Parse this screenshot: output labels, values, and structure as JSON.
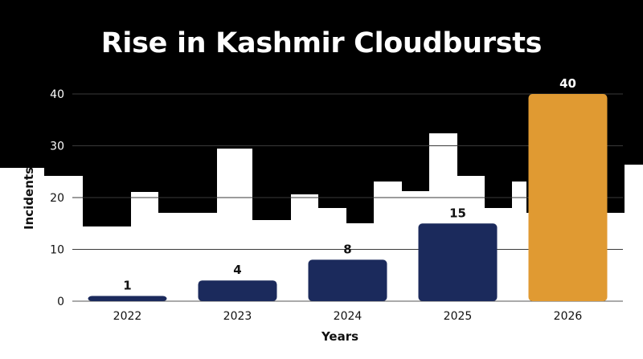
{
  "chart_data": {
    "type": "bar",
    "title": "Rise in Kashmir Cloudbursts",
    "xlabel": "Years",
    "ylabel": "Incidents",
    "categories": [
      "2022",
      "2023",
      "2024",
      "2025",
      "2026"
    ],
    "values": [
      1,
      4,
      8,
      15,
      40
    ],
    "ylim": [
      0,
      40
    ],
    "yticks": [
      0,
      10,
      20,
      30,
      40
    ],
    "grid": true,
    "colors": {
      "bar": "#1b2a5c",
      "highlight": "#e09a32",
      "background": "#000000",
      "skyline": "#ffffff"
    }
  }
}
